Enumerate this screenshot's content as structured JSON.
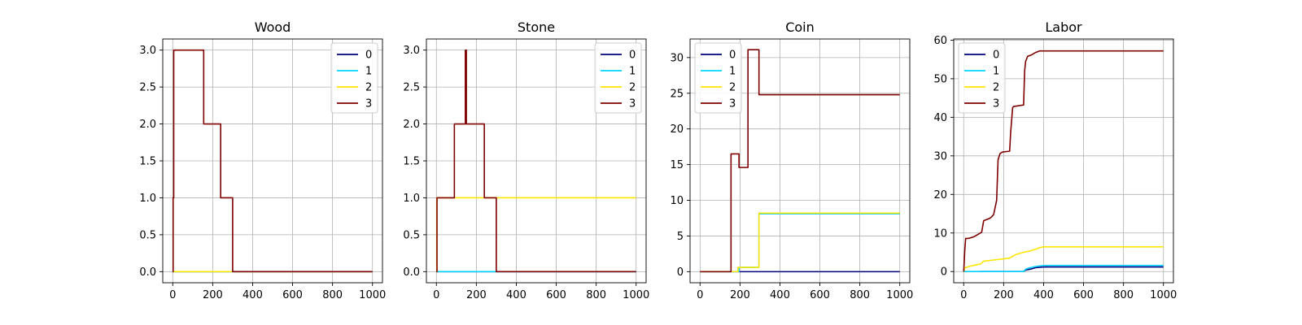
{
  "chart_data": [
    {
      "type": "line",
      "title": "Wood",
      "xlabel": "",
      "ylabel": "",
      "xlim": [
        -50,
        1050
      ],
      "ylim": [
        -0.15,
        3.15
      ],
      "xticks": [
        0,
        200,
        400,
        600,
        800,
        1000
      ],
      "yticks": [
        0.0,
        0.5,
        1.0,
        1.5,
        2.0,
        2.5,
        3.0
      ],
      "ytick_labels": [
        "0.0",
        "0.5",
        "1.0",
        "1.5",
        "2.0",
        "2.5",
        "3.0"
      ],
      "grid": true,
      "legend_position": "upper right",
      "series": [
        {
          "name": "0",
          "color": "#00007f",
          "x": [
            0,
            1000
          ],
          "y": [
            0,
            0
          ]
        },
        {
          "name": "1",
          "color": "#00d4ff",
          "x": [
            0,
            1000
          ],
          "y": [
            0,
            0
          ]
        },
        {
          "name": "2",
          "color": "#ffe500",
          "x": [
            0,
            300,
            1000
          ],
          "y": [
            0,
            0,
            0
          ]
        },
        {
          "name": "3",
          "color": "#7f0000",
          "x": [
            0,
            2,
            2,
            5,
            5,
            155,
            155,
            240,
            240,
            300,
            300,
            1000
          ],
          "y": [
            0,
            0,
            1,
            1,
            3,
            3,
            2,
            2,
            1,
            1,
            0,
            0
          ]
        }
      ]
    },
    {
      "type": "line",
      "title": "Stone",
      "xlabel": "",
      "ylabel": "",
      "xlim": [
        -50,
        1050
      ],
      "ylim": [
        -0.15,
        3.15
      ],
      "xticks": [
        0,
        200,
        400,
        600,
        800,
        1000
      ],
      "yticks": [
        0.0,
        0.5,
        1.0,
        1.5,
        2.0,
        2.5,
        3.0
      ],
      "ytick_labels": [
        "0.0",
        "0.5",
        "1.0",
        "1.5",
        "2.0",
        "2.5",
        "3.0"
      ],
      "grid": true,
      "legend_position": "upper right",
      "series": [
        {
          "name": "0",
          "color": "#00007f",
          "x": [
            0,
            1000
          ],
          "y": [
            0,
            0
          ]
        },
        {
          "name": "1",
          "color": "#00d4ff",
          "x": [
            0,
            300,
            300,
            1000
          ],
          "y": [
            0,
            0,
            0,
            0
          ]
        },
        {
          "name": "2",
          "color": "#ffe500",
          "x": [
            0,
            2,
            2,
            1000
          ],
          "y": [
            0,
            0,
            1,
            1
          ]
        },
        {
          "name": "3",
          "color": "#7f0000",
          "x": [
            0,
            3,
            3,
            90,
            90,
            145,
            145,
            150,
            150,
            155,
            155,
            240,
            240,
            300,
            300,
            1000
          ],
          "y": [
            0,
            0,
            1,
            1,
            2,
            2,
            3,
            3,
            2,
            2,
            2,
            2,
            1,
            1,
            0,
            0
          ]
        }
      ]
    },
    {
      "type": "line",
      "title": "Coin",
      "xlabel": "",
      "ylabel": "",
      "xlim": [
        -50,
        1050
      ],
      "ylim": [
        -1.55,
        32.6
      ],
      "xticks": [
        0,
        200,
        400,
        600,
        800,
        1000
      ],
      "yticks": [
        0,
        5,
        10,
        15,
        20,
        25,
        30
      ],
      "ytick_labels": [
        "0",
        "5",
        "10",
        "15",
        "20",
        "25",
        "30"
      ],
      "grid": true,
      "legend_position": "upper left",
      "series": [
        {
          "name": "0",
          "color": "#00007f",
          "x": [
            0,
            1000
          ],
          "y": [
            0,
            0
          ]
        },
        {
          "name": "1",
          "color": "#00d4ff",
          "x": [
            0,
            195,
            195,
            295,
            295,
            1000
          ],
          "y": [
            0,
            0,
            0.6,
            0.6,
            8.1,
            8.1
          ]
        },
        {
          "name": "2",
          "color": "#ffe500",
          "x": [
            0,
            190,
            190,
            295,
            295,
            1000
          ],
          "y": [
            0,
            0,
            0.6,
            0.6,
            8.2,
            8.2
          ]
        },
        {
          "name": "3",
          "color": "#7f0000",
          "x": [
            0,
            155,
            155,
            195,
            195,
            240,
            240,
            295,
            295,
            1000
          ],
          "y": [
            0,
            0,
            16.5,
            16.5,
            14.6,
            14.6,
            31.1,
            31.1,
            24.8,
            24.8
          ]
        }
      ]
    },
    {
      "type": "line",
      "title": "Labor",
      "xlabel": "",
      "ylabel": "",
      "xlim": [
        -50,
        1050
      ],
      "ylim": [
        -2.9,
        60.3
      ],
      "xticks": [
        0,
        200,
        400,
        600,
        800,
        1000
      ],
      "yticks": [
        0,
        10,
        20,
        30,
        40,
        50,
        60
      ],
      "ytick_labels": [
        "0",
        "10",
        "20",
        "30",
        "40",
        "50",
        "60"
      ],
      "grid": true,
      "legend_position": "upper left",
      "series": [
        {
          "name": "0",
          "color": "#00007f",
          "x": [
            80,
            300,
            310,
            340,
            360,
            400,
            1000
          ],
          "y": [
            0,
            0,
            0.4,
            0.7,
            1.0,
            1.2,
            1.2
          ]
        },
        {
          "name": "1",
          "color": "#00d4ff",
          "x": [
            0,
            300,
            310,
            330,
            360,
            400,
            1000
          ],
          "y": [
            0,
            0,
            0.6,
            1.0,
            1.3,
            1.6,
            1.6
          ]
        },
        {
          "name": "2",
          "color": "#ffe500",
          "x": [
            0,
            5,
            40,
            60,
            85,
            100,
            150,
            200,
            230,
            260,
            300,
            330,
            360,
            380,
            400,
            1000
          ],
          "y": [
            0,
            1.0,
            1.5,
            1.7,
            2.0,
            2.7,
            3.0,
            3.3,
            3.5,
            4.4,
            5.0,
            5.3,
            5.8,
            6.2,
            6.4,
            6.4
          ]
        },
        {
          "name": "3",
          "color": "#7f0000",
          "x": [
            0,
            3,
            6,
            10,
            25,
            50,
            70,
            90,
            100,
            130,
            140,
            150,
            165,
            172,
            178,
            182,
            195,
            230,
            235,
            245,
            250,
            300,
            305,
            310,
            320,
            340,
            360,
            380,
            400,
            1000
          ],
          "y": [
            0,
            3.0,
            6.0,
            8.6,
            8.6,
            9.0,
            9.6,
            10.2,
            13.2,
            13.8,
            14.2,
            14.8,
            18.5,
            29.0,
            30.0,
            30.6,
            31.0,
            31.2,
            36.0,
            42.5,
            42.8,
            43.2,
            52.0,
            54.5,
            55.8,
            56.2,
            56.8,
            57.2,
            57.2,
            57.2
          ]
        }
      ]
    }
  ]
}
